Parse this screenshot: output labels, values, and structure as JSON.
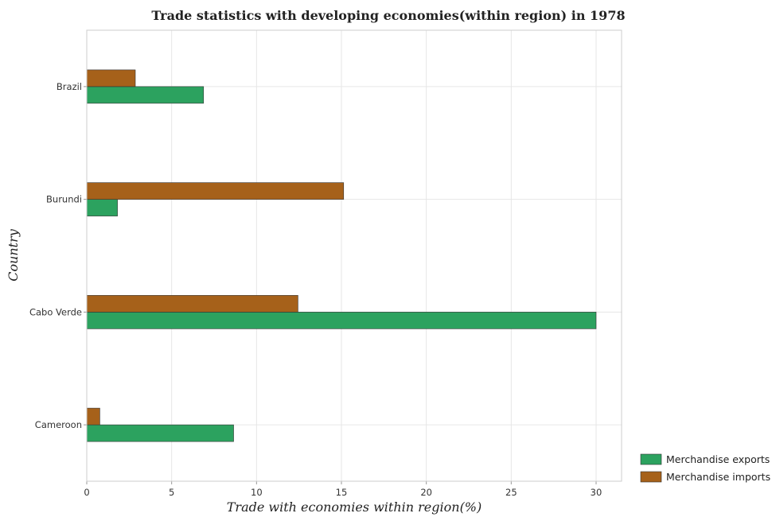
{
  "chart_data": {
    "type": "bar",
    "orientation": "horizontal",
    "title": "Trade statistics with developing economies(within region) in 1978",
    "xlabel": "Trade with economies within region(%)",
    "ylabel": "Country",
    "categories": [
      "Brazil",
      "Burundi",
      "Cabo Verde",
      "Cameroon"
    ],
    "series": [
      {
        "name": "Merchandise exports",
        "color": "#2ca25f",
        "values": [
          6.88,
          1.81,
          30.0,
          8.65
        ]
      },
      {
        "name": "Merchandise imports",
        "color": "#a6611a",
        "values": [
          2.86,
          15.13,
          12.44,
          0.77
        ]
      }
    ],
    "xlim": [
      0,
      31.5
    ],
    "xticks": [
      0,
      5,
      10,
      15,
      20,
      25,
      30
    ],
    "grid": true,
    "legend": "bottom-right"
  }
}
